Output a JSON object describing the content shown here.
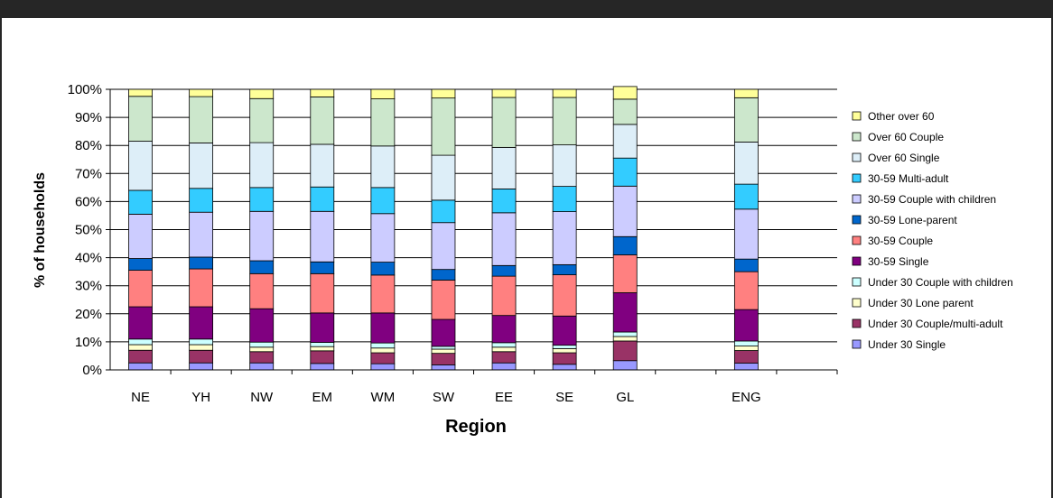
{
  "chart_data": {
    "type": "bar",
    "stacked": true,
    "percent_stacked": true,
    "title": "",
    "xlabel": "Region",
    "ylabel": "% of households",
    "ylim": [
      0,
      100
    ],
    "yticks": [
      "0%",
      "10%",
      "20%",
      "30%",
      "40%",
      "50%",
      "60%",
      "70%",
      "80%",
      "90%",
      "100%"
    ],
    "grid": true,
    "legend_position": "right",
    "slots": [
      "NE",
      "YH",
      "NW",
      "EM",
      "WM",
      "SW",
      "EE",
      "SE",
      "GL",
      "",
      "ENG",
      ""
    ],
    "categories": [
      "NE",
      "YH",
      "NW",
      "EM",
      "WM",
      "SW",
      "EE",
      "SE",
      "GL",
      "ENG"
    ],
    "series": [
      {
        "name": "Under 30 Single",
        "color": "#9999ff",
        "values": [
          2.5,
          2.5,
          2.5,
          2.3,
          2.2,
          1.8,
          2.5,
          2.0,
          3.3,
          2.4
        ]
      },
      {
        "name": "Under 30 Couple/multi-adult",
        "color": "#993366",
        "values": [
          4.5,
          4.5,
          4.0,
          4.5,
          3.9,
          4.1,
          4.0,
          4.1,
          7.0,
          4.5
        ]
      },
      {
        "name": "Under 30 Lone parent",
        "color": "#ffffcc",
        "values": [
          2.0,
          2.0,
          1.6,
          1.5,
          1.7,
          1.5,
          1.6,
          1.5,
          1.6,
          1.6
        ]
      },
      {
        "name": "Under 30 Couple with children",
        "color": "#ccffff",
        "values": [
          2.0,
          2.0,
          1.8,
          1.5,
          1.8,
          1.0,
          1.6,
          1.2,
          1.6,
          1.8
        ]
      },
      {
        "name": "30-59 Single",
        "color": "#800080",
        "values": [
          11.5,
          11.5,
          11.9,
          10.5,
          10.7,
          9.6,
          9.7,
          10.4,
          14.0,
          11.2
        ]
      },
      {
        "name": "30-59 Couple",
        "color": "#ff8080",
        "values": [
          13.0,
          13.5,
          12.5,
          14.0,
          13.5,
          14.0,
          14.0,
          14.7,
          13.5,
          13.5
        ]
      },
      {
        "name": "30-59 Lone-parent",
        "color": "#0066cc",
        "values": [
          4.2,
          4.2,
          4.6,
          4.2,
          4.6,
          3.8,
          3.8,
          3.6,
          6.5,
          4.5
        ]
      },
      {
        "name": "30-59 Couple with children",
        "color": "#ccccff",
        "values": [
          15.8,
          16.0,
          17.6,
          18.0,
          17.3,
          16.7,
          18.8,
          18.9,
          18.0,
          17.8
        ]
      },
      {
        "name": "30-59 Multi-adult",
        "color": "#33ccff",
        "values": [
          8.5,
          8.5,
          8.5,
          8.7,
          9.3,
          8.0,
          8.5,
          9.0,
          10.0,
          8.9
        ]
      },
      {
        "name": "Over 60 Single",
        "color": "#ddeef8",
        "values": [
          17.5,
          16.2,
          16.0,
          15.2,
          14.8,
          16.0,
          14.8,
          14.8,
          12.0,
          15.0
        ]
      },
      {
        "name": "Over 60 Couple",
        "color": "#cce7cc",
        "values": [
          16.0,
          16.5,
          15.7,
          16.9,
          16.8,
          20.4,
          17.8,
          16.9,
          9.0,
          15.8
        ]
      },
      {
        "name": "Other over 60",
        "color": "#ffff99",
        "values": [
          2.5,
          2.6,
          3.3,
          2.7,
          3.4,
          3.1,
          2.9,
          2.9,
          4.5,
          3.0
        ]
      }
    ]
  }
}
